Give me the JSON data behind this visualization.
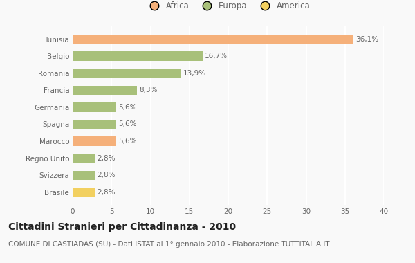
{
  "categories": [
    "Brasile",
    "Svizzera",
    "Regno Unito",
    "Marocco",
    "Spagna",
    "Germania",
    "Francia",
    "Romania",
    "Belgio",
    "Tunisia"
  ],
  "values": [
    2.8,
    2.8,
    2.8,
    5.6,
    5.6,
    5.6,
    8.3,
    13.9,
    16.7,
    36.1
  ],
  "labels": [
    "2,8%",
    "2,8%",
    "2,8%",
    "5,6%",
    "5,6%",
    "5,6%",
    "8,3%",
    "13,9%",
    "16,7%",
    "36,1%"
  ],
  "colors": [
    "#f2d060",
    "#a8c07a",
    "#a8c07a",
    "#f5b07a",
    "#a8c07a",
    "#a8c07a",
    "#a8c07a",
    "#a8c07a",
    "#a8c07a",
    "#f5b07a"
  ],
  "legend": [
    {
      "label": "Africa",
      "color": "#f5b07a"
    },
    {
      "label": "Europa",
      "color": "#a8c07a"
    },
    {
      "label": "America",
      "color": "#f2d060"
    }
  ],
  "xlim": [
    0,
    40
  ],
  "xticks": [
    0,
    5,
    10,
    15,
    20,
    25,
    30,
    35,
    40
  ],
  "title": "Cittadini Stranieri per Cittadinanza - 2010",
  "subtitle": "COMUNE DI CASTIADAS (SU) - Dati ISTAT al 1° gennaio 2010 - Elaborazione TUTTITALIA.IT",
  "background_color": "#f9f9f9",
  "bar_height": 0.55,
  "title_fontsize": 10,
  "subtitle_fontsize": 7.5,
  "label_fontsize": 7.5,
  "tick_fontsize": 7.5,
  "legend_fontsize": 8.5
}
